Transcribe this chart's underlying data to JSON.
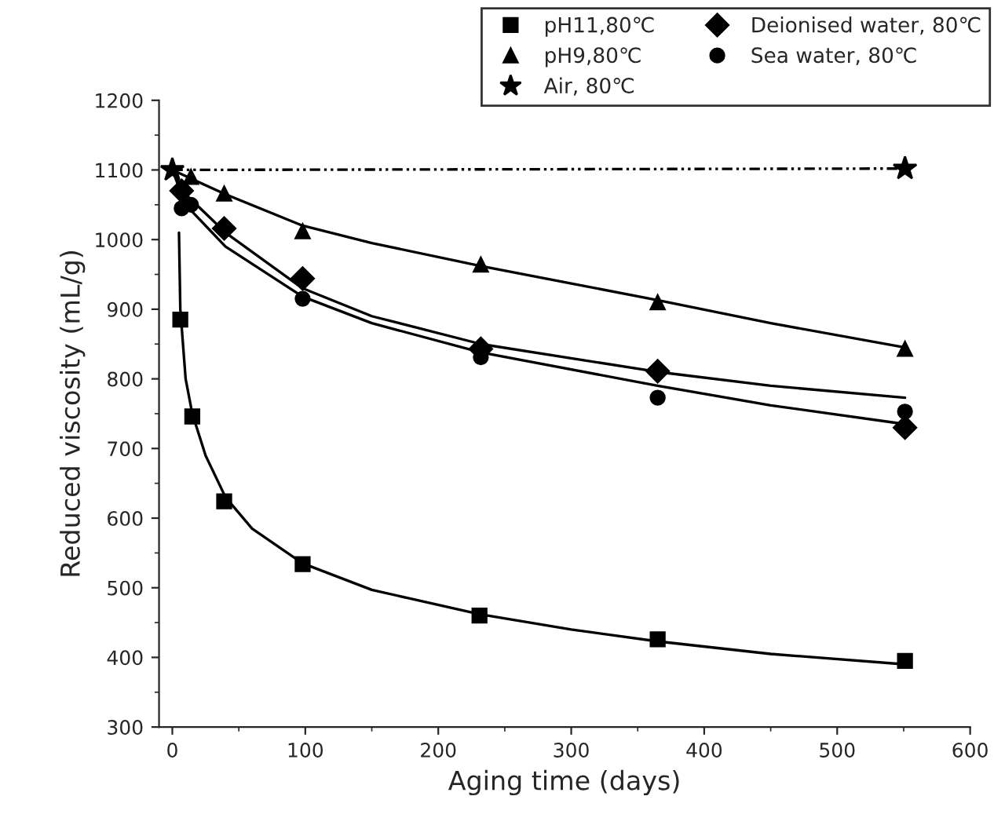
{
  "chart_data": {
    "type": "scatter",
    "xlabel": "Aging time (days)",
    "ylabel": "Reduced viscosity (mL/g)",
    "xlim": [
      -10,
      600
    ],
    "ylim": [
      300,
      1200
    ],
    "xticks": [
      0,
      100,
      200,
      300,
      400,
      500,
      600
    ],
    "yticks": [
      300,
      400,
      500,
      600,
      700,
      800,
      900,
      1000,
      1100,
      1200
    ],
    "legend": "top",
    "grid": false,
    "series": [
      {
        "name": "pH11,80℃",
        "marker": "square",
        "color": "#000000",
        "x": [
          6,
          15,
          39,
          98,
          231,
          365,
          551
        ],
        "values": [
          885,
          746,
          624,
          534,
          460,
          426,
          395
        ]
      },
      {
        "name": "pH9,80℃",
        "marker": "triangle",
        "color": "#000000",
        "x": [
          14,
          39,
          98,
          232,
          365,
          551
        ],
        "values": [
          1090,
          1066,
          1012,
          964,
          910,
          843
        ]
      },
      {
        "name": "Air, 80℃",
        "type": "line",
        "marker": "star",
        "line_style": "dotted",
        "color": "#000000",
        "x": [
          0,
          551
        ],
        "values": [
          1100,
          1102
        ]
      },
      {
        "name": "Deionised water, 80℃",
        "marker": "diamond",
        "color": "#000000",
        "x": [
          7,
          39,
          98,
          232,
          365,
          551
        ],
        "values": [
          1070,
          1016,
          944,
          843,
          811,
          730
        ]
      },
      {
        "name": "Sea water, 80℃",
        "marker": "circle",
        "color": "#000000",
        "x": [
          7,
          14,
          98,
          232,
          365,
          551
        ],
        "values": [
          1045,
          1050,
          915,
          831,
          773,
          753
        ]
      },
      {
        "type": "line",
        "marker": "none",
        "line_style": "solid",
        "color": "#000000",
        "x": [
          5,
          6,
          10,
          15,
          25,
          40,
          60,
          98,
          150,
          231,
          300,
          365,
          450,
          551
        ],
        "values": [
          1010,
          900,
          800,
          750,
          690,
          630,
          585,
          535,
          497,
          462,
          440,
          423,
          405,
          390
        ]
      },
      {
        "type": "line",
        "marker": "none",
        "line_style": "solid",
        "color": "#000000",
        "x": [
          0,
          40,
          98,
          150,
          232,
          300,
          365,
          450,
          551
        ],
        "values": [
          1100,
          1065,
          1020,
          995,
          962,
          937,
          913,
          880,
          845
        ]
      },
      {
        "type": "line",
        "marker": "none",
        "line_style": "solid",
        "color": "#000000",
        "x": [
          0,
          10,
          40,
          98,
          150,
          232,
          365,
          450,
          551
        ],
        "values": [
          1100,
          1065,
          1010,
          930,
          890,
          850,
          810,
          790,
          773
        ]
      },
      {
        "type": "line",
        "marker": "none",
        "line_style": "solid",
        "color": "#000000",
        "x": [
          0,
          10,
          40,
          98,
          150,
          232,
          365,
          450,
          551
        ],
        "values": [
          1100,
          1050,
          990,
          918,
          880,
          838,
          790,
          762,
          735
        ]
      }
    ]
  }
}
